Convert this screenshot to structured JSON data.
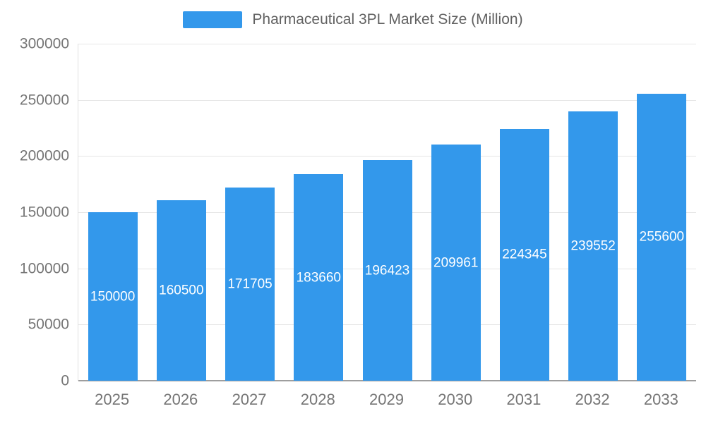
{
  "chart_data": {
    "type": "bar",
    "title": "Pharmaceutical 3PL Market Size (Million)",
    "categories": [
      "2025",
      "2026",
      "2027",
      "2028",
      "2029",
      "2030",
      "2031",
      "2032",
      "2033"
    ],
    "values": [
      150000,
      160500,
      171705,
      183660,
      196423,
      209961,
      224345,
      239552,
      255600
    ],
    "xlabel": "",
    "ylabel": "",
    "ylim": [
      0,
      300000
    ],
    "ytick_step": 50000,
    "ytick_labels": [
      "0",
      "50000",
      "100000",
      "150000",
      "200000",
      "250000",
      "300000"
    ],
    "grid": true,
    "legend_position": "top",
    "bar_color": "#3398EB",
    "value_label_color": "#ffffff",
    "axis_label_color": "#757575",
    "title_color": "#616161"
  }
}
